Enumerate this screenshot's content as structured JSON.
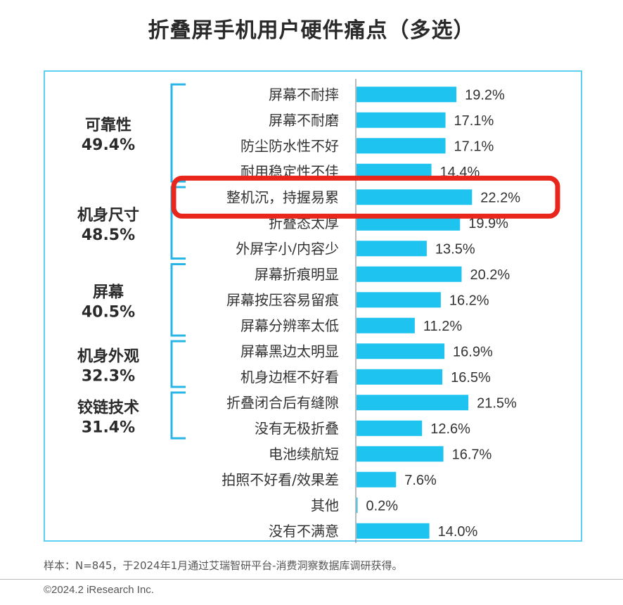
{
  "title": "折叠屏手机用户硬件痛点（多选）",
  "footnote": "样本：N=845，于2024年1月通过艾瑞智研平台-消费洞察数据库调研获得。",
  "copyright": "©2024.2 iResearch Inc.",
  "colors": {
    "bar": "#1fc3f0",
    "frame": "#5ed0f2",
    "bracket": "#29b6e6",
    "highlight": "#e8261b",
    "text": "#333333"
  },
  "chart_data": {
    "type": "bar",
    "orientation": "horizontal",
    "categories": [
      "屏幕不耐摔",
      "屏幕不耐磨",
      "防尘防水性不好",
      "耐用稳定性不佳",
      "整机沉，持握易累",
      "折叠态太厚",
      "外屏字小/内容少",
      "屏幕折痕明显",
      "屏幕按压容易留痕",
      "屏幕分辨率太低",
      "屏幕黑边太明显",
      "机身边框不好看",
      "折叠闭合后有缝隙",
      "没有无极折叠",
      "电池续航短",
      "拍照不好看/效果差",
      "其他",
      "没有不满意"
    ],
    "values": [
      19.2,
      17.1,
      17.1,
      14.4,
      22.2,
      19.9,
      13.5,
      20.2,
      16.2,
      11.2,
      16.9,
      16.5,
      21.5,
      12.6,
      16.7,
      7.6,
      0.2,
      14.0
    ],
    "value_labels": [
      "19.2%",
      "17.1%",
      "17.1%",
      "14.4%",
      "22.2%",
      "19.9%",
      "13.5%",
      "20.2%",
      "16.2%",
      "11.2%",
      "16.9%",
      "16.5%",
      "21.5%",
      "12.6%",
      "16.7%",
      "7.6%",
      "0.2%",
      "14.0%"
    ],
    "unit": "%",
    "groups": [
      {
        "name": "可靠性",
        "value": "49.4%",
        "start": 0,
        "end": 3
      },
      {
        "name": "机身尺寸",
        "value": "48.5%",
        "start": 4,
        "end": 6
      },
      {
        "name": "屏幕",
        "value": "40.5%",
        "start": 7,
        "end": 9
      },
      {
        "name": "机身外观",
        "value": "32.3%",
        "start": 10,
        "end": 11
      },
      {
        "name": "铰链技术",
        "value": "31.4%",
        "start": 12,
        "end": 13
      }
    ],
    "highlighted_index": 4
  }
}
